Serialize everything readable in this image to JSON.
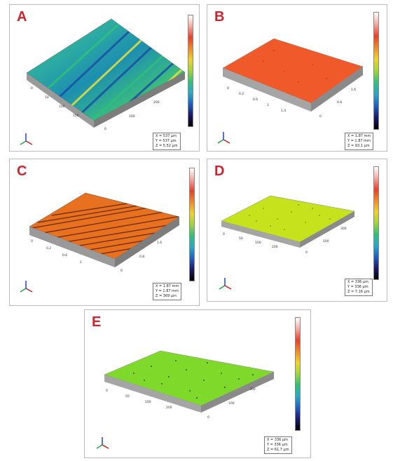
{
  "panels": [
    {
      "id": "A",
      "label": "A",
      "info_lines": [
        "X = 537 µm",
        "Y = 537 µm",
        "Z = 5.52 µm"
      ],
      "surface_color": "#27a89a",
      "pattern": "diagonal-streaks",
      "colorbar": "rainbow"
    },
    {
      "id": "B",
      "label": "B",
      "info_lines": [
        "X = 1.87 mm",
        "Y = 1.87 mm",
        "Z = 93.1 µm"
      ],
      "surface_color": "#f05a2a",
      "pattern": "smooth",
      "colorbar": "rainbow"
    },
    {
      "id": "C",
      "label": "C",
      "info_lines": [
        "X = 1.87 mm",
        "Y = 1.87 mm",
        "Z = 369 µm"
      ],
      "surface_color": "#e8711f",
      "pattern": "horizontal-streaks",
      "colorbar": "rainbow"
    },
    {
      "id": "D",
      "label": "D",
      "info_lines": [
        "X = 336 µm",
        "Y = 336 µm",
        "Z = 7.16 µm"
      ],
      "surface_color": "#c6e21c",
      "pattern": "speckled",
      "colorbar": "rainbow"
    },
    {
      "id": "E",
      "label": "E",
      "info_lines": [
        "X = 336 µm",
        "Y = 336 µm",
        "Z = 61.7 µm"
      ],
      "surface_color": "#7fd92a",
      "pattern": "speckled",
      "colorbar": "rainbow"
    }
  ],
  "colors": {
    "label_red": "#c8262e",
    "frame_gray": "#bdbdbd"
  }
}
